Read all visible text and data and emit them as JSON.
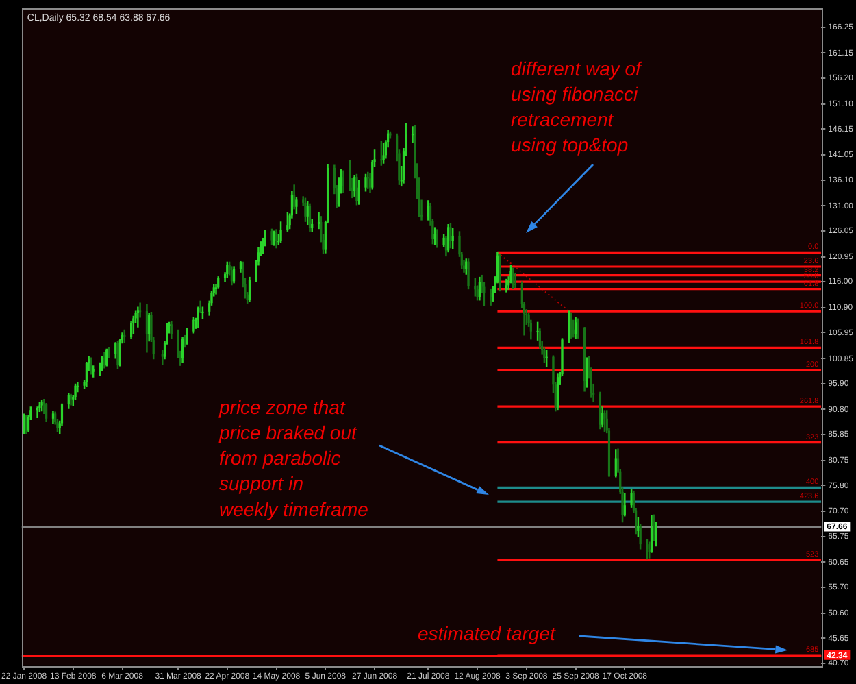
{
  "chart_data": {
    "type": "candlestick",
    "title": "CL,Daily 65.32 68.54 63.88 67.66",
    "x": [
      "2008-01-22",
      "2008-01-23",
      "2008-01-24",
      "2008-01-25",
      "2008-01-28",
      "2008-01-29",
      "2008-01-30",
      "2008-01-31",
      "2008-02-01",
      "2008-02-04",
      "2008-02-05",
      "2008-02-06",
      "2008-02-07",
      "2008-02-08",
      "2008-02-11",
      "2008-02-12",
      "2008-02-13",
      "2008-02-14",
      "2008-02-15",
      "2008-02-18",
      "2008-02-19",
      "2008-02-20",
      "2008-02-21",
      "2008-02-22",
      "2008-02-25",
      "2008-02-26",
      "2008-02-27",
      "2008-02-28",
      "2008-02-29",
      "2008-03-03",
      "2008-03-04",
      "2008-03-05",
      "2008-03-06",
      "2008-03-07",
      "2008-03-10",
      "2008-03-11",
      "2008-03-12",
      "2008-03-13",
      "2008-03-14",
      "2008-03-17",
      "2008-03-18",
      "2008-03-19",
      "2008-03-20",
      "2008-03-24",
      "2008-03-25",
      "2008-03-26",
      "2008-03-27",
      "2008-03-28",
      "2008-03-31",
      "2008-04-01",
      "2008-04-02",
      "2008-04-03",
      "2008-04-04",
      "2008-04-07",
      "2008-04-08",
      "2008-04-09",
      "2008-04-10",
      "2008-04-11",
      "2008-04-14",
      "2008-04-15",
      "2008-04-16",
      "2008-04-17",
      "2008-04-18",
      "2008-04-21",
      "2008-04-22",
      "2008-04-23",
      "2008-04-24",
      "2008-04-25",
      "2008-04-28",
      "2008-04-29",
      "2008-04-30",
      "2008-05-01",
      "2008-05-02",
      "2008-05-05",
      "2008-05-06",
      "2008-05-07",
      "2008-05-08",
      "2008-05-09",
      "2008-05-12",
      "2008-05-13",
      "2008-05-14",
      "2008-05-15",
      "2008-05-16",
      "2008-05-19",
      "2008-05-20",
      "2008-05-21",
      "2008-05-22",
      "2008-05-23",
      "2008-05-26",
      "2008-05-27",
      "2008-05-28",
      "2008-05-29",
      "2008-05-30",
      "2008-06-02",
      "2008-06-03",
      "2008-06-04",
      "2008-06-05",
      "2008-06-06",
      "2008-06-09",
      "2008-06-10",
      "2008-06-11",
      "2008-06-12",
      "2008-06-13",
      "2008-06-16",
      "2008-06-17",
      "2008-06-18",
      "2008-06-19",
      "2008-06-20",
      "2008-06-23",
      "2008-06-24",
      "2008-06-25",
      "2008-06-26",
      "2008-06-27",
      "2008-06-30",
      "2008-07-01",
      "2008-07-02",
      "2008-07-03",
      "2008-07-04",
      "2008-07-07",
      "2008-07-08",
      "2008-07-09",
      "2008-07-10",
      "2008-07-11",
      "2008-07-14",
      "2008-07-15",
      "2008-07-16",
      "2008-07-17",
      "2008-07-18",
      "2008-07-21",
      "2008-07-22",
      "2008-07-23",
      "2008-07-24",
      "2008-07-25",
      "2008-07-28",
      "2008-07-29",
      "2008-07-30",
      "2008-07-31",
      "2008-08-01",
      "2008-08-04",
      "2008-08-05",
      "2008-08-06",
      "2008-08-07",
      "2008-08-08",
      "2008-08-11",
      "2008-08-12",
      "2008-08-13",
      "2008-08-14",
      "2008-08-15",
      "2008-08-18",
      "2008-08-19",
      "2008-08-20",
      "2008-08-21",
      "2008-08-22",
      "2008-08-25",
      "2008-08-26",
      "2008-08-27",
      "2008-08-28",
      "2008-08-29",
      "2008-09-01",
      "2008-09-02",
      "2008-09-03",
      "2008-09-04",
      "2008-09-05",
      "2008-09-08",
      "2008-09-09",
      "2008-09-10",
      "2008-09-11",
      "2008-09-12",
      "2008-09-15",
      "2008-09-16",
      "2008-09-17",
      "2008-09-18",
      "2008-09-19",
      "2008-09-22",
      "2008-09-23",
      "2008-09-24",
      "2008-09-25",
      "2008-09-26",
      "2008-09-29",
      "2008-09-30",
      "2008-10-01",
      "2008-10-02",
      "2008-10-03",
      "2008-10-06",
      "2008-10-07",
      "2008-10-08",
      "2008-10-09",
      "2008-10-10",
      "2008-10-13",
      "2008-10-14",
      "2008-10-15",
      "2008-10-16",
      "2008-10-17",
      "2008-10-20",
      "2008-10-21",
      "2008-10-22",
      "2008-10-23",
      "2008-10-24",
      "2008-10-27",
      "2008-10-28",
      "2008-10-29",
      "2008-10-30",
      "2008-10-31"
    ],
    "ohlc": [
      [
        88.0,
        89.9,
        86.1,
        89.2
      ],
      [
        89.2,
        89.7,
        86.1,
        86.6
      ],
      [
        86.6,
        89.6,
        86.4,
        89.4
      ],
      [
        89.4,
        91.3,
        88.8,
        90.7
      ],
      [
        90.7,
        91.3,
        89.2,
        91.0
      ],
      [
        91.0,
        92.2,
        90.4,
        91.6
      ],
      [
        91.6,
        92.6,
        90.5,
        92.3
      ],
      [
        92.3,
        92.8,
        90.0,
        91.8
      ],
      [
        91.8,
        92.0,
        88.5,
        89.0
      ],
      [
        89.0,
        90.5,
        88.1,
        90.0
      ],
      [
        90.0,
        90.3,
        87.9,
        88.4
      ],
      [
        88.4,
        88.8,
        86.4,
        87.1
      ],
      [
        87.1,
        88.5,
        86.1,
        88.1
      ],
      [
        88.1,
        91.9,
        87.6,
        91.8
      ],
      [
        91.8,
        93.9,
        91.0,
        93.6
      ],
      [
        93.6,
        93.8,
        91.7,
        92.8
      ],
      [
        92.8,
        93.6,
        91.5,
        93.3
      ],
      [
        93.3,
        95.8,
        92.8,
        95.5
      ],
      [
        95.5,
        96.2,
        94.3,
        95.5
      ],
      [
        95.5,
        96.5,
        95.0,
        96.2
      ],
      [
        96.2,
        100.1,
        95.4,
        100.0
      ],
      [
        100.0,
        101.3,
        98.5,
        100.7
      ],
      [
        100.7,
        101.0,
        97.8,
        98.2
      ],
      [
        98.2,
        99.4,
        97.2,
        98.8
      ],
      [
        98.8,
        100.0,
        97.5,
        99.2
      ],
      [
        99.2,
        101.3,
        98.4,
        100.9
      ],
      [
        100.9,
        102.1,
        99.0,
        99.6
      ],
      [
        99.6,
        102.7,
        99.4,
        102.6
      ],
      [
        102.6,
        103.1,
        101.0,
        101.8
      ],
      [
        101.8,
        104.0,
        100.9,
        104.0
      ],
      [
        104.0,
        104.3,
        98.8,
        99.5
      ],
      [
        99.5,
        104.6,
        99.4,
        104.5
      ],
      [
        104.5,
        105.9,
        103.9,
        105.5
      ],
      [
        105.5,
        106.5,
        104.0,
        105.2
      ],
      [
        105.2,
        108.2,
        104.8,
        107.9
      ],
      [
        107.9,
        109.2,
        105.7,
        108.8
      ],
      [
        108.8,
        110.2,
        108.0,
        109.9
      ],
      [
        109.9,
        111.0,
        107.1,
        110.3
      ],
      [
        110.3,
        111.8,
        109.0,
        110.2
      ],
      [
        110.2,
        111.5,
        102.1,
        105.7
      ],
      [
        105.7,
        109.7,
        104.3,
        109.4
      ],
      [
        109.4,
        110.0,
        104.2,
        104.5
      ],
      [
        104.5,
        105.0,
        100.8,
        101.8
      ],
      [
        101.8,
        102.5,
        99.6,
        101.2
      ],
      [
        101.2,
        104.3,
        100.8,
        104.0
      ],
      [
        104.0,
        107.8,
        103.7,
        107.6
      ],
      [
        107.6,
        108.0,
        105.9,
        107.6
      ],
      [
        107.6,
        108.2,
        104.9,
        105.6
      ],
      [
        105.6,
        106.5,
        101.0,
        101.6
      ],
      [
        101.6,
        102.3,
        99.5,
        101.0
      ],
      [
        101.0,
        105.0,
        100.1,
        104.8
      ],
      [
        104.8,
        105.4,
        103.1,
        103.9
      ],
      [
        103.9,
        106.8,
        103.7,
        106.2
      ],
      [
        106.2,
        108.9,
        105.9,
        108.5
      ],
      [
        108.5,
        108.8,
        106.8,
        108.5
      ],
      [
        108.5,
        111.0,
        107.0,
        110.9
      ],
      [
        110.9,
        112.2,
        109.9,
        110.1
      ],
      [
        110.1,
        111.0,
        108.7,
        110.1
      ],
      [
        110.1,
        112.2,
        109.4,
        111.8
      ],
      [
        111.8,
        114.1,
        111.4,
        113.8
      ],
      [
        113.8,
        115.5,
        113.2,
        114.9
      ],
      [
        114.9,
        115.5,
        113.6,
        114.9
      ],
      [
        114.9,
        117.0,
        114.8,
        116.7
      ],
      [
        116.7,
        117.8,
        116.0,
        117.5
      ],
      [
        117.5,
        119.9,
        116.8,
        119.4
      ],
      [
        119.4,
        119.9,
        117.4,
        118.3
      ],
      [
        118.3,
        119.0,
        115.4,
        116.1
      ],
      [
        116.1,
        119.0,
        115.8,
        118.5
      ],
      [
        118.5,
        120.0,
        117.9,
        119.8
      ],
      [
        119.8,
        119.9,
        115.0,
        115.6
      ],
      [
        115.6,
        116.7,
        112.8,
        113.5
      ],
      [
        113.5,
        113.9,
        111.8,
        112.5
      ],
      [
        112.5,
        116.9,
        112.1,
        116.3
      ],
      [
        116.3,
        120.2,
        116.0,
        120.0
      ],
      [
        120.0,
        122.7,
        119.3,
        121.8
      ],
      [
        121.8,
        123.9,
        121.2,
        123.5
      ],
      [
        123.5,
        124.6,
        121.6,
        123.7
      ],
      [
        123.7,
        126.2,
        123.1,
        126.0
      ],
      [
        126.0,
        126.4,
        123.4,
        124.2
      ],
      [
        124.2,
        126.0,
        123.2,
        125.8
      ],
      [
        125.8,
        126.3,
        122.7,
        124.1
      ],
      [
        124.1,
        125.4,
        123.3,
        124.1
      ],
      [
        124.1,
        127.8,
        123.8,
        126.3
      ],
      [
        126.3,
        129.6,
        126.0,
        127.1
      ],
      [
        127.1,
        129.4,
        126.5,
        129.1
      ],
      [
        129.1,
        133.8,
        128.6,
        133.2
      ],
      [
        133.2,
        135.1,
        130.4,
        130.8
      ],
      [
        130.8,
        132.6,
        129.5,
        132.2
      ],
      [
        132.2,
        132.8,
        131.0,
        131.6
      ],
      [
        131.6,
        132.5,
        127.9,
        128.9
      ],
      [
        128.9,
        131.9,
        127.2,
        131.0
      ],
      [
        131.0,
        131.4,
        126.0,
        126.6
      ],
      [
        126.6,
        128.3,
        125.9,
        127.4
      ],
      [
        127.4,
        129.6,
        126.5,
        127.8
      ],
      [
        127.8,
        128.9,
        123.9,
        124.3
      ],
      [
        124.3,
        125.3,
        121.6,
        122.3
      ],
      [
        122.3,
        128.0,
        121.7,
        127.8
      ],
      [
        127.8,
        139.1,
        127.6,
        138.5
      ],
      [
        138.5,
        139.0,
        133.4,
        134.4
      ],
      [
        134.4,
        135.0,
        130.6,
        131.3
      ],
      [
        131.3,
        136.6,
        130.9,
        136.4
      ],
      [
        136.4,
        138.2,
        133.5,
        136.7
      ],
      [
        136.7,
        137.9,
        133.7,
        134.9
      ],
      [
        134.9,
        139.9,
        134.0,
        134.6
      ],
      [
        134.6,
        136.5,
        132.6,
        134.0
      ],
      [
        134.0,
        137.0,
        132.9,
        136.7
      ],
      [
        136.7,
        137.2,
        131.2,
        131.9
      ],
      [
        131.9,
        136.0,
        131.3,
        134.6
      ],
      [
        134.6,
        137.2,
        133.9,
        136.7
      ],
      [
        136.7,
        137.6,
        134.4,
        136.4
      ],
      [
        136.4,
        137.3,
        133.6,
        134.6
      ],
      [
        134.6,
        140.0,
        134.3,
        139.6
      ],
      [
        139.6,
        142.0,
        138.8,
        140.2
      ],
      [
        140.2,
        143.7,
        139.0,
        140.0
      ],
      [
        140.0,
        143.3,
        139.4,
        141.0
      ],
      [
        141.0,
        143.9,
        140.4,
        143.6
      ],
      [
        143.6,
        145.9,
        142.6,
        145.3
      ],
      [
        145.3,
        145.6,
        144.3,
        144.9
      ],
      [
        144.9,
        145.2,
        139.9,
        141.4
      ],
      [
        141.4,
        142.0,
        135.2,
        136.0
      ],
      [
        136.0,
        138.8,
        134.9,
        136.1
      ],
      [
        136.1,
        142.3,
        135.5,
        141.7
      ],
      [
        141.7,
        147.3,
        141.0,
        145.1
      ],
      [
        145.1,
        146.6,
        143.5,
        145.2
      ],
      [
        145.2,
        146.8,
        136.5,
        138.7
      ],
      [
        138.7,
        139.3,
        132.4,
        134.6
      ],
      [
        134.6,
        136.6,
        128.9,
        129.3
      ],
      [
        129.3,
        132.1,
        128.2,
        128.9
      ],
      [
        128.9,
        132.0,
        128.2,
        131.0
      ],
      [
        131.0,
        131.5,
        127.1,
        128.0
      ],
      [
        128.0,
        128.3,
        123.5,
        124.4
      ],
      [
        124.4,
        126.7,
        123.3,
        125.5
      ],
      [
        125.5,
        126.3,
        122.8,
        123.3
      ],
      [
        123.3,
        125.4,
        122.9,
        124.7
      ],
      [
        124.7,
        125.0,
        121.1,
        122.2
      ],
      [
        122.2,
        127.3,
        121.9,
        126.8
      ],
      [
        126.8,
        127.5,
        122.7,
        124.1
      ],
      [
        124.1,
        126.6,
        122.6,
        125.1
      ],
      [
        125.1,
        125.9,
        121.0,
        121.4
      ],
      [
        121.4,
        121.8,
        118.6,
        119.2
      ],
      [
        119.2,
        120.2,
        117.9,
        118.6
      ],
      [
        118.6,
        120.5,
        117.5,
        120.0
      ],
      [
        120.0,
        120.5,
        114.6,
        115.2
      ],
      [
        115.2,
        116.7,
        113.2,
        114.5
      ],
      [
        114.5,
        115.2,
        112.4,
        113.0
      ],
      [
        113.0,
        116.9,
        112.4,
        116.0
      ],
      [
        116.0,
        117.3,
        113.9,
        115.0
      ],
      [
        115.0,
        115.8,
        111.3,
        113.8
      ],
      [
        113.8,
        114.6,
        111.4,
        112.9
      ],
      [
        112.9,
        115.0,
        112.2,
        114.5
      ],
      [
        114.5,
        117.0,
        113.9,
        116.0
      ],
      [
        116.0,
        121.8,
        115.8,
        121.2
      ],
      [
        121.2,
        121.5,
        114.2,
        114.6
      ],
      [
        114.6,
        116.5,
        114.0,
        115.3
      ],
      [
        115.3,
        117.0,
        114.5,
        116.3
      ],
      [
        116.3,
        119.2,
        115.8,
        118.2
      ],
      [
        118.2,
        118.7,
        114.7,
        115.6
      ],
      [
        115.6,
        117.6,
        114.9,
        115.5
      ],
      [
        115.5,
        116.0,
        110.9,
        111.6
      ],
      [
        111.6,
        111.9,
        105.5,
        109.7
      ],
      [
        109.7,
        110.5,
        107.6,
        109.4
      ],
      [
        109.4,
        109.8,
        107.2,
        107.9
      ],
      [
        107.9,
        108.4,
        104.7,
        106.2
      ],
      [
        106.2,
        108.0,
        104.5,
        106.3
      ],
      [
        106.3,
        106.7,
        102.9,
        103.3
      ],
      [
        103.3,
        104.3,
        101.7,
        102.6
      ],
      [
        102.6,
        102.9,
        100.1,
        100.9
      ],
      [
        100.9,
        102.5,
        99.3,
        101.2
      ],
      [
        101.2,
        101.4,
        94.1,
        95.7
      ],
      [
        95.7,
        96.1,
        90.5,
        91.2
      ],
      [
        91.2,
        97.9,
        90.8,
        97.2
      ],
      [
        97.2,
        98.1,
        95.7,
        97.9
      ],
      [
        97.9,
        104.8,
        97.5,
        104.6
      ],
      [
        104.6,
        110.2,
        104.0,
        109.4
      ],
      [
        109.4,
        109.9,
        104.9,
        106.6
      ],
      [
        106.6,
        108.4,
        105.1,
        105.7
      ],
      [
        105.7,
        109.0,
        104.8,
        108.0
      ],
      [
        108.0,
        108.7,
        104.9,
        106.9
      ],
      [
        106.9,
        107.0,
        94.4,
        96.4
      ],
      [
        96.4,
        101.0,
        95.2,
        100.6
      ],
      [
        100.6,
        101.3,
        97.0,
        98.5
      ],
      [
        98.5,
        99.0,
        93.3,
        94.0
      ],
      [
        94.0,
        95.8,
        92.3,
        93.9
      ],
      [
        93.9,
        94.2,
        87.0,
        87.8
      ],
      [
        87.8,
        91.3,
        87.4,
        90.1
      ],
      [
        90.1,
        90.6,
        86.5,
        89.0
      ],
      [
        89.0,
        90.6,
        86.2,
        86.6
      ],
      [
        86.6,
        87.0,
        77.6,
        77.7
      ],
      [
        77.7,
        82.9,
        77.5,
        81.2
      ],
      [
        81.2,
        83.0,
        78.4,
        78.6
      ],
      [
        78.6,
        79.0,
        74.2,
        74.5
      ],
      [
        74.5,
        75.3,
        68.6,
        69.9
      ],
      [
        69.9,
        74.2,
        69.8,
        71.9
      ],
      [
        71.9,
        75.0,
        71.5,
        74.3
      ],
      [
        74.3,
        74.7,
        70.4,
        70.9
      ],
      [
        70.9,
        71.3,
        66.3,
        66.8
      ],
      [
        66.8,
        69.5,
        65.7,
        67.8
      ],
      [
        67.8,
        68.1,
        63.3,
        64.2
      ],
      [
        64.2,
        65.2,
        61.3,
        63.2
      ],
      [
        63.2,
        64.6,
        61.5,
        62.7
      ],
      [
        62.7,
        69.9,
        62.6,
        67.5
      ],
      [
        67.5,
        70.0,
        64.9,
        66.0
      ],
      [
        65.32,
        68.54,
        63.88,
        67.66
      ]
    ],
    "colors": [
      "#2bd42b",
      "#187518",
      "#2bd42b",
      "#2bd42b",
      "#2bd42b",
      "#2bd42b",
      "#2bd42b",
      "#187518",
      "#187518",
      "#2bd42b",
      "#187518",
      "#187518",
      "#2bd42b",
      "#2bd42b",
      "#2bd42b",
      "#187518",
      "#2bd42b",
      "#2bd42b",
      "#2bd42b",
      "#2bd42b",
      "#2bd42b",
      "#2bd42b",
      "#187518",
      "#2bd42b",
      "#2bd42b",
      "#2bd42b",
      "#187518",
      "#2bd42b",
      "#187518",
      "#2bd42b",
      "#187518",
      "#2bd42b",
      "#2bd42b",
      "#187518",
      "#2bd42b",
      "#2bd42b",
      "#2bd42b",
      "#2bd42b",
      "#187518",
      "#187518",
      "#2bd42b",
      "#187518",
      "#187518",
      "#187518",
      "#2bd42b",
      "#2bd42b",
      "#2bd42b",
      "#187518",
      "#187518",
      "#187518",
      "#2bd42b",
      "#187518",
      "#2bd42b",
      "#2bd42b",
      "#2bd42b",
      "#2bd42b",
      "#187518",
      "#2bd42b",
      "#2bd42b",
      "#2bd42b",
      "#2bd42b",
      "#2bd42b",
      "#2bd42b",
      "#2bd42b",
      "#2bd42b",
      "#187518",
      "#187518",
      "#2bd42b",
      "#2bd42b",
      "#187518",
      "#187518",
      "#187518",
      "#2bd42b",
      "#2bd42b",
      "#2bd42b",
      "#2bd42b",
      "#2bd42b",
      "#2bd42b",
      "#187518",
      "#2bd42b",
      "#187518",
      "#2bd42b",
      "#2bd42b",
      "#2bd42b",
      "#2bd42b",
      "#2bd42b",
      "#187518",
      "#2bd42b",
      "#187518",
      "#187518",
      "#2bd42b",
      "#187518",
      "#2bd42b",
      "#2bd42b",
      "#187518",
      "#187518",
      "#2bd42b",
      "#2bd42b",
      "#187518",
      "#187518",
      "#2bd42b",
      "#2bd42b",
      "#187518",
      "#187518",
      "#187518",
      "#2bd42b",
      "#187518",
      "#2bd42b",
      "#2bd42b",
      "#187518",
      "#187518",
      "#2bd42b",
      "#2bd42b",
      "#187518",
      "#2bd42b",
      "#2bd42b",
      "#2bd42b",
      "#187518",
      "#187518",
      "#187518",
      "#2bd42b",
      "#2bd42b",
      "#2bd42b",
      "#2bd42b",
      "#187518",
      "#187518",
      "#187518",
      "#187518",
      "#2bd42b",
      "#187518",
      "#187518",
      "#2bd42b",
      "#187518",
      "#2bd42b",
      "#187518",
      "#2bd42b",
      "#187518",
      "#2bd42b",
      "#187518",
      "#187518",
      "#187518",
      "#2bd42b",
      "#187518",
      "#187518",
      "#187518",
      "#2bd42b",
      "#187518",
      "#187518",
      "#187518",
      "#2bd42b",
      "#2bd42b",
      "#2bd42b",
      "#187518",
      "#2bd42b",
      "#2bd42b",
      "#2bd42b",
      "#187518",
      "#187518",
      "#187518",
      "#187518",
      "#187518",
      "#187518",
      "#187518",
      "#2bd42b",
      "#187518",
      "#187518",
      "#187518",
      "#2bd42b",
      "#187518",
      "#187518",
      "#2bd42b",
      "#2bd42b",
      "#2bd42b",
      "#2bd42b",
      "#187518",
      "#187518",
      "#2bd42b",
      "#187518",
      "#187518",
      "#2bd42b",
      "#187518",
      "#187518",
      "#187518",
      "#187518",
      "#2bd42b",
      "#187518",
      "#187518",
      "#187518",
      "#2bd42b",
      "#187518",
      "#187518",
      "#187518",
      "#2bd42b",
      "#2bd42b",
      "#187518",
      "#187518",
      "#2bd42b",
      "#187518",
      "#187518",
      "#187518",
      "#2bd42b",
      "#187518",
      "#2bd42b"
    ],
    "xlim": [
      "2008-01-21",
      "2009-01-13"
    ],
    "xticks": [
      {
        "value": "2008-01-22",
        "label": "22 Jan 2008"
      },
      {
        "value": "2008-02-13",
        "label": "13 Feb 2008"
      },
      {
        "value": "2008-03-06",
        "label": "6 Mar 2008"
      },
      {
        "value": "2008-03-31",
        "label": "31 Mar 2008"
      },
      {
        "value": "2008-04-22",
        "label": "22 Apr 2008"
      },
      {
        "value": "2008-05-14",
        "label": "14 May 2008"
      },
      {
        "value": "2008-06-05",
        "label": "5 Jun 2008"
      },
      {
        "value": "2008-06-27",
        "label": "27 Jun 2008"
      },
      {
        "value": "2008-07-21",
        "label": "21 Jul 2008"
      },
      {
        "value": "2008-08-12",
        "label": "12 Aug 2008"
      },
      {
        "value": "2008-09-03",
        "label": "3 Sep 2008"
      },
      {
        "value": "2008-09-25",
        "label": "25 Sep 2008"
      },
      {
        "value": "2008-10-17",
        "label": "17 Oct 2008"
      }
    ],
    "ylim": [
      40.2,
      170.1
    ],
    "yticks": [
      {
        "value": 40.7,
        "label": "40.70"
      },
      45.65,
      {
        "value": 50.6,
        "label": "50.60"
      },
      {
        "value": 55.7,
        "label": "55.70"
      },
      60.65,
      65.75,
      {
        "value": 70.7,
        "label": "70.70"
      },
      {
        "value": 75.8,
        "label": "75.80"
      },
      80.75,
      85.85,
      {
        "value": 90.8,
        "label": "90.80"
      },
      {
        "value": 95.9,
        "label": "95.90"
      },
      100.85,
      105.95,
      {
        "value": 110.9,
        "label": "110.90"
      },
      {
        "value": 116,
        "label": "116.00"
      },
      120.95,
      126.05,
      {
        "value": 131,
        "label": "131.00"
      },
      {
        "value": 136.1,
        "label": "136.10"
      },
      141.05,
      146.15,
      {
        "value": 151.1,
        "label": "151.10"
      },
      {
        "value": 156.2,
        "label": "156.20"
      },
      161.15,
      166.25
    ],
    "series": [
      {
        "type": "line",
        "name": "0.0",
        "color": "#ff1010",
        "x": [
          "2008-08-21",
          "2009-01-13"
        ],
        "values": [
          121.8,
          121.8
        ]
      },
      {
        "type": "line",
        "name": "23.6",
        "color": "#ff1010",
        "x": [
          "2008-08-21",
          "2009-01-13"
        ],
        "values": [
          119.0,
          119.0
        ]
      },
      {
        "type": "line",
        "name": "38.2",
        "color": "#ff1010",
        "x": [
          "2008-08-21",
          "2009-01-13"
        ],
        "values": [
          117.3,
          117.3
        ]
      },
      {
        "type": "line",
        "name": "50.0",
        "color": "#ff1010",
        "x": [
          "2008-08-21",
          "2009-01-13"
        ],
        "values": [
          116.0,
          116.0
        ]
      },
      {
        "type": "line",
        "name": "61.8",
        "color": "#ff1010",
        "x": [
          "2008-08-21",
          "2009-01-13"
        ],
        "values": [
          114.6,
          114.6
        ]
      },
      {
        "type": "line",
        "name": "100.0",
        "color": "#ff1010",
        "x": [
          "2008-08-21",
          "2009-01-13"
        ],
        "values": [
          110.2,
          110.2
        ]
      },
      {
        "type": "line",
        "name": "161.8",
        "color": "#ff1010",
        "x": [
          "2008-08-21",
          "2009-01-13"
        ],
        "values": [
          103.0,
          103.0
        ]
      },
      {
        "type": "line",
        "name": "200",
        "color": "#ff1010",
        "x": [
          "2008-08-21",
          "2009-01-13"
        ],
        "values": [
          98.6,
          98.6
        ]
      },
      {
        "type": "line",
        "name": "261.8",
        "color": "#ff1010",
        "x": [
          "2008-08-21",
          "2009-01-13"
        ],
        "values": [
          91.4,
          91.4
        ]
      },
      {
        "type": "line",
        "name": "323",
        "color": "#ff1010",
        "x": [
          "2008-08-21",
          "2009-01-13"
        ],
        "values": [
          84.3,
          84.3
        ]
      },
      {
        "type": "line",
        "name": "400",
        "color": "#1e8c8c",
        "x": [
          "2008-08-21",
          "2009-01-13"
        ],
        "values": [
          75.4,
          75.4
        ]
      },
      {
        "type": "line",
        "name": "423.6",
        "color": "#1e8c8c",
        "x": [
          "2008-08-21",
          "2009-01-13"
        ],
        "values": [
          72.6,
          72.6
        ]
      },
      {
        "type": "line",
        "name": "523",
        "color": "#ff1010",
        "x": [
          "2008-08-21",
          "2009-01-13"
        ],
        "values": [
          61.1,
          61.1
        ]
      },
      {
        "type": "line",
        "name": "685",
        "color": "#ff1010",
        "x": [
          "2008-08-21",
          "2009-01-13"
        ],
        "values": [
          42.3,
          42.3
        ]
      },
      {
        "type": "line",
        "color": "#b00000",
        "line_style": "dotted",
        "x": [
          "2008-08-21",
          "2008-09-22"
        ],
        "values": [
          121.8,
          110.2
        ]
      }
    ],
    "ref_lines": [
      {
        "axis": "y",
        "value": 67.66,
        "label": "67.66",
        "color": "#808080"
      },
      {
        "axis": "y",
        "value": 42.34,
        "label": "42.34",
        "color": "#ff1010"
      }
    ],
    "annotations": [
      "different way of\nusing fibonacci\nretracement\nusing top&top",
      "price zone that\nprice braked out\nfrom parabolic\nsupport in\nweekly timeframe",
      {
        "text": "estimated target",
        "x": "2008-12-29",
        "y": 43.3
      }
    ]
  }
}
